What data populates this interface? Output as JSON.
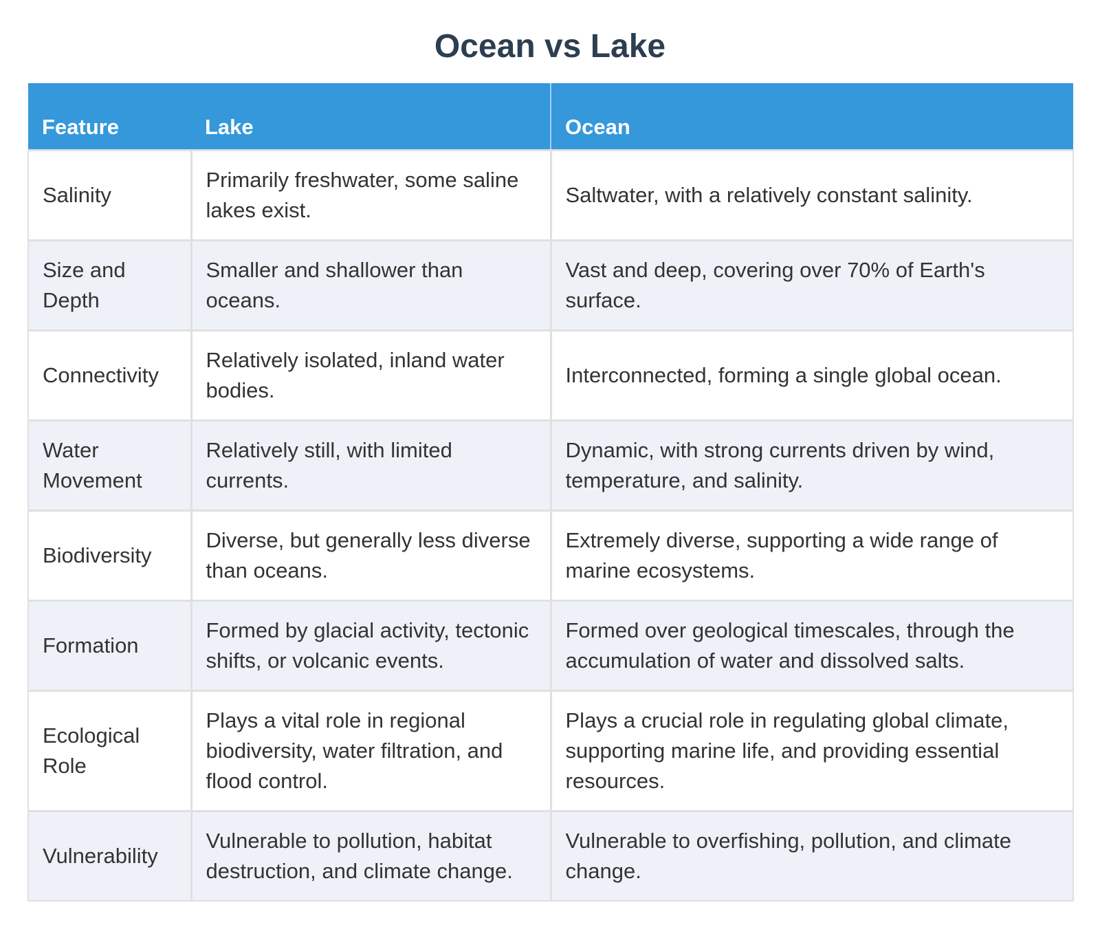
{
  "title": "Ocean vs Lake",
  "colors": {
    "header_bg": "#3498db",
    "header_text": "#ffffff",
    "title_text": "#2c3e50",
    "body_text": "#333333",
    "stripe_bg": "#eef2f8",
    "border": "#e0e0e0"
  },
  "table": {
    "columns": [
      "Feature",
      "Lake",
      "Ocean"
    ],
    "rows": [
      {
        "feature": "Salinity",
        "lake": "Primarily freshwater, some saline lakes exist.",
        "ocean": "Saltwater, with a relatively constant salinity."
      },
      {
        "feature": "Size and Depth",
        "lake": "Smaller and shallower than oceans.",
        "ocean": "Vast and deep, covering over 70% of Earth's surface."
      },
      {
        "feature": "Connectivity",
        "lake": "Relatively isolated, inland water bodies.",
        "ocean": "Interconnected, forming a single global ocean."
      },
      {
        "feature": "Water Movement",
        "lake": "Relatively still, with limited currents.",
        "ocean": "Dynamic, with strong currents driven by wind, temperature, and salinity."
      },
      {
        "feature": "Biodiversity",
        "lake": "Diverse, but generally less diverse than oceans.",
        "ocean": "Extremely diverse, supporting a wide range of marine ecosystems."
      },
      {
        "feature": "Formation",
        "lake": "Formed by glacial activity, tectonic shifts, or volcanic events.",
        "ocean": "Formed over geological timescales, through the accumulation of water and dissolved salts."
      },
      {
        "feature": "Ecological Role",
        "lake": "Plays a vital role in regional biodiversity, water filtration, and flood control.",
        "ocean": "Plays a crucial role in regulating global climate, supporting marine life, and providing essential resources."
      },
      {
        "feature": "Vulnerability",
        "lake": "Vulnerable to pollution, habitat destruction, and climate change.",
        "ocean": "Vulnerable to overfishing, pollution, and climate change."
      }
    ]
  }
}
